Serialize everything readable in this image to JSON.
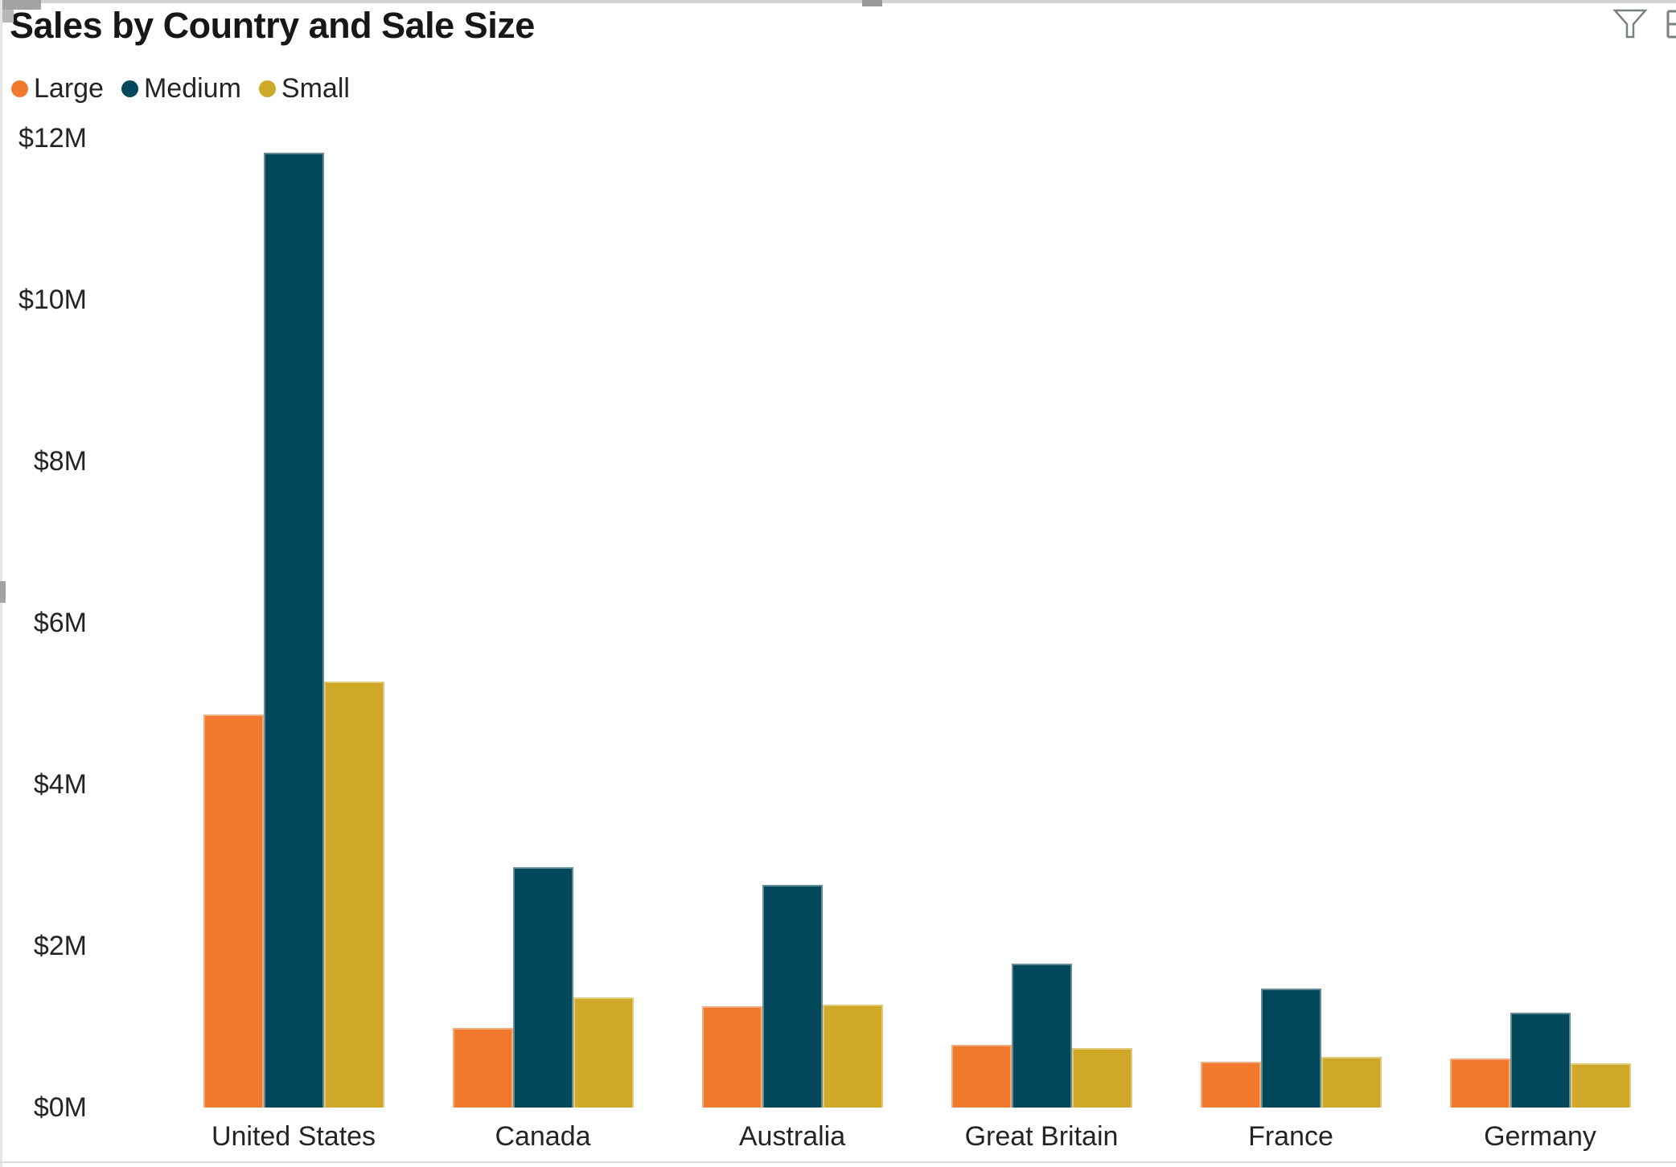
{
  "title": "Sales by Country and Sale Size",
  "toolbar": {
    "icons": [
      "filter-icon",
      "focus-mode-icon"
    ]
  },
  "legend": {
    "position": "top-left",
    "items": [
      {
        "label": "Large",
        "color": "#F0792E"
      },
      {
        "label": "Medium",
        "color": "#03485A"
      },
      {
        "label": "Small",
        "color": "#CFA828"
      }
    ]
  },
  "chart_data": {
    "type": "bar",
    "title": "Sales by Country and Sale Size",
    "categories": [
      "United States",
      "Canada",
      "Australia",
      "Great Britain",
      "France",
      "Germany"
    ],
    "series": [
      {
        "name": "Large",
        "color": "#F0792E",
        "values": [
          4.87,
          0.99,
          1.25,
          0.78,
          0.57,
          0.61
        ]
      },
      {
        "name": "Medium",
        "color": "#03485A",
        "values": [
          11.82,
          2.98,
          2.76,
          1.78,
          1.47,
          1.17
        ]
      },
      {
        "name": "Small",
        "color": "#CFA828",
        "values": [
          5.27,
          1.36,
          1.27,
          0.74,
          0.63,
          0.55
        ]
      }
    ],
    "value_unit": "$M",
    "xlabel": "",
    "ylabel": "",
    "ylim": [
      0,
      12
    ],
    "y_ticks": [
      "$12M",
      "$10M",
      "$8M",
      "$6M",
      "$4M",
      "$2M",
      "$0M"
    ],
    "grid": false,
    "legend_position": "top-left"
  }
}
